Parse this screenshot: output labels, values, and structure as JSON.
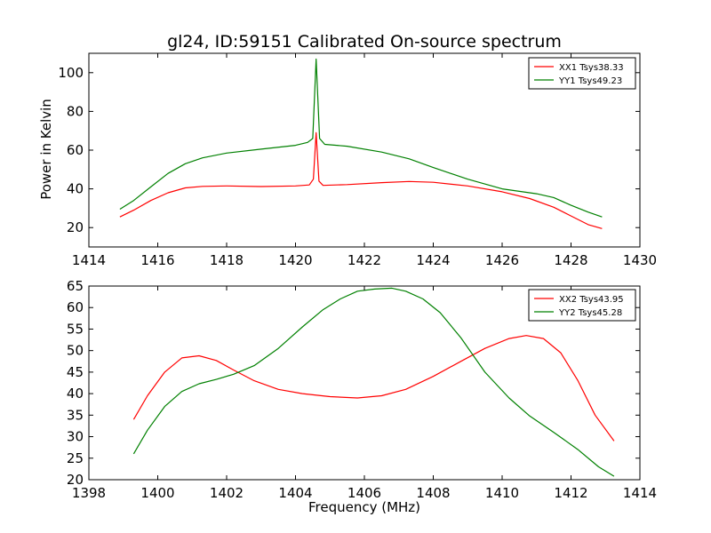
{
  "chart_data": [
    {
      "type": "line",
      "title": "gl24, ID:59151 Calibrated On-source spectrum",
      "xlabel": "",
      "ylabel": "Power in Kelvin",
      "xlim": [
        1414,
        1430
      ],
      "ylim": [
        10,
        110
      ],
      "xticks": [
        "1414",
        "1416",
        "1418",
        "1420",
        "1422",
        "1424",
        "1426",
        "1428",
        "1430"
      ],
      "yticks": [
        "20",
        "40",
        "60",
        "80",
        "100"
      ],
      "legend_position": "top-right",
      "grid": false,
      "series": [
        {
          "name": "XX1 Tsys38.33",
          "color": "#ff0000",
          "x": [
            1414.9,
            1415.3,
            1415.8,
            1416.3,
            1416.8,
            1417.3,
            1418.0,
            1419.0,
            1420.0,
            1420.4,
            1420.52,
            1420.6,
            1420.68,
            1420.8,
            1421.5,
            1422.5,
            1423.3,
            1424.0,
            1425.0,
            1426.0,
            1426.8,
            1427.5,
            1428.0,
            1428.5,
            1428.9
          ],
          "y": [
            25.5,
            29,
            34,
            38,
            40.5,
            41.3,
            41.5,
            41.2,
            41.5,
            42,
            45,
            69,
            44,
            41.8,
            42.2,
            43.2,
            43.8,
            43.4,
            41.5,
            38.5,
            35,
            30.5,
            26,
            21.5,
            19.5
          ]
        },
        {
          "name": "YY1 Tsys49.23",
          "color": "#008000",
          "x": [
            1414.9,
            1415.3,
            1415.8,
            1416.3,
            1416.8,
            1417.3,
            1418.0,
            1419.0,
            1420.0,
            1420.35,
            1420.5,
            1420.6,
            1420.7,
            1420.85,
            1421.5,
            1422.5,
            1423.3,
            1424.0,
            1425.0,
            1426.0,
            1427.0,
            1427.5,
            1428.0,
            1428.5,
            1428.9
          ],
          "y": [
            29.5,
            34,
            41,
            48,
            53,
            56,
            58.5,
            60.5,
            62.5,
            64,
            66,
            107,
            66,
            63,
            62,
            59,
            55.5,
            51,
            45,
            40,
            37.5,
            35.5,
            31.5,
            28,
            25.5
          ]
        }
      ]
    },
    {
      "type": "line",
      "title": "",
      "xlabel": "Frequency (MHz)",
      "ylabel": "",
      "xlim": [
        1398,
        1414
      ],
      "ylim": [
        20,
        65
      ],
      "xticks": [
        "1398",
        "1400",
        "1402",
        "1404",
        "1406",
        "1408",
        "1410",
        "1412",
        "1414"
      ],
      "yticks": [
        "20",
        "25",
        "30",
        "35",
        "40",
        "45",
        "50",
        "55",
        "60",
        "65"
      ],
      "legend_position": "top-right",
      "grid": false,
      "series": [
        {
          "name": "XX2 Tsys43.95",
          "color": "#ff0000",
          "x": [
            1399.3,
            1399.7,
            1400.2,
            1400.7,
            1401.2,
            1401.7,
            1402.2,
            1402.8,
            1403.5,
            1404.2,
            1405.0,
            1405.8,
            1406.5,
            1407.2,
            1408.0,
            1408.8,
            1409.5,
            1410.2,
            1410.7,
            1411.2,
            1411.7,
            1412.2,
            1412.7,
            1413.25
          ],
          "y": [
            34,
            39.5,
            45,
            48.3,
            48.8,
            47.7,
            45.5,
            43,
            41,
            40,
            39.3,
            39,
            39.5,
            41,
            44,
            47.5,
            50.5,
            52.8,
            53.5,
            52.8,
            49.5,
            43,
            35,
            29
          ]
        },
        {
          "name": "YY2 Tsys45.28",
          "color": "#008000",
          "x": [
            1399.3,
            1399.7,
            1400.2,
            1400.7,
            1401.2,
            1401.7,
            1402.2,
            1402.8,
            1403.5,
            1404.2,
            1404.8,
            1405.3,
            1405.8,
            1406.3,
            1406.8,
            1407.2,
            1407.7,
            1408.2,
            1408.8,
            1409.5,
            1410.2,
            1410.8,
            1411.5,
            1412.2,
            1412.8,
            1413.25
          ],
          "y": [
            26,
            31.5,
            37,
            40.5,
            42.3,
            43.3,
            44.5,
            46.5,
            50.5,
            55.5,
            59.5,
            62,
            63.8,
            64.3,
            64.5,
            63.8,
            62,
            58.8,
            53,
            45,
            39,
            34.8,
            31,
            27,
            23,
            20.8
          ]
        }
      ]
    }
  ]
}
